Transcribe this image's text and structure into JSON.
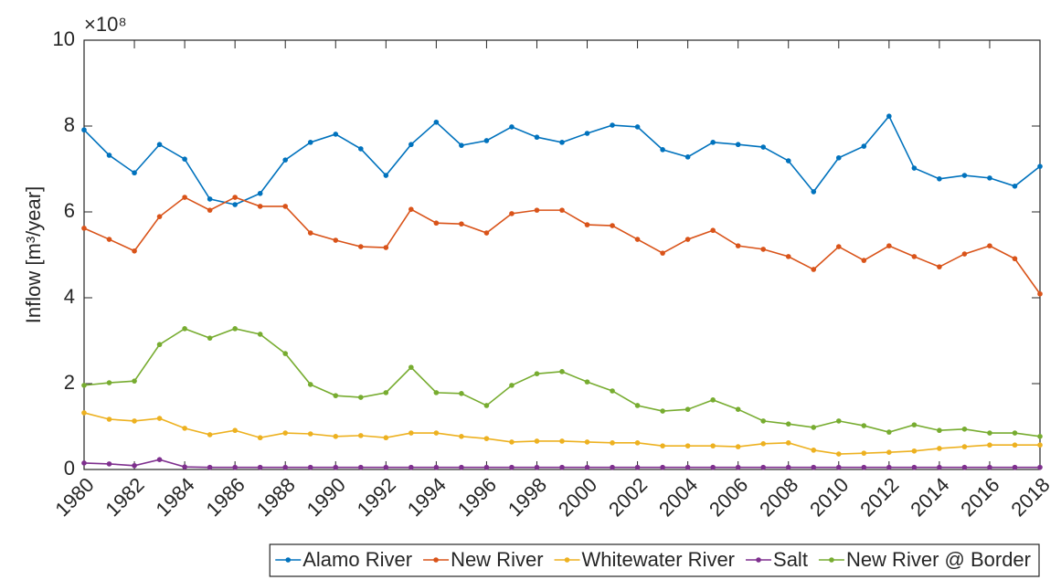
{
  "chart_data": {
    "type": "line",
    "ylabel": "Inflow [m³/year]",
    "exponent_label": "×10⁸",
    "x": [
      1980,
      1981,
      1982,
      1983,
      1984,
      1985,
      1986,
      1987,
      1988,
      1989,
      1990,
      1991,
      1992,
      1993,
      1994,
      1995,
      1996,
      1997,
      1998,
      1999,
      2000,
      2001,
      2002,
      2003,
      2004,
      2005,
      2006,
      2007,
      2008,
      2009,
      2010,
      2011,
      2012,
      2013,
      2014,
      2015,
      2016,
      2017,
      2018
    ],
    "xlim": [
      1980,
      2018
    ],
    "xticks": [
      1980,
      1982,
      1984,
      1986,
      1988,
      1990,
      1992,
      1994,
      1996,
      1998,
      2000,
      2002,
      2004,
      2006,
      2008,
      2010,
      2012,
      2014,
      2016,
      2018
    ],
    "ylim": [
      0,
      10
    ],
    "yticks": [
      0,
      2,
      4,
      6,
      8,
      10
    ],
    "grid": false,
    "legend": "bottom",
    "series": [
      {
        "name": "Alamo River",
        "color": "#0072BD",
        "values": [
          7.91,
          7.32,
          6.91,
          7.57,
          7.23,
          6.3,
          6.17,
          6.43,
          7.21,
          7.62,
          7.81,
          7.47,
          6.85,
          7.57,
          8.09,
          7.55,
          7.66,
          7.98,
          7.74,
          7.62,
          7.83,
          8.02,
          7.98,
          7.45,
          7.28,
          7.62,
          7.57,
          7.51,
          7.19,
          6.47,
          7.26,
          7.53,
          8.23,
          7.02,
          6.77,
          6.85,
          6.79,
          6.6,
          7.06
        ]
      },
      {
        "name": "New River",
        "color": "#D95319",
        "values": [
          5.62,
          5.36,
          5.09,
          5.89,
          6.34,
          6.04,
          6.34,
          6.13,
          6.13,
          5.51,
          5.34,
          5.19,
          5.17,
          6.06,
          5.74,
          5.72,
          5.51,
          5.96,
          6.04,
          6.04,
          5.7,
          5.68,
          5.36,
          5.04,
          5.36,
          5.57,
          5.21,
          5.13,
          4.96,
          4.66,
          5.19,
          4.87,
          5.21,
          4.96,
          4.72,
          5.02,
          5.21,
          4.91,
          4.09
        ]
      },
      {
        "name": "Whitewater River",
        "color": "#EDB120",
        "values": [
          1.32,
          1.17,
          1.13,
          1.19,
          0.96,
          0.81,
          0.91,
          0.74,
          0.85,
          0.83,
          0.77,
          0.79,
          0.74,
          0.85,
          0.85,
          0.77,
          0.72,
          0.64,
          0.66,
          0.66,
          0.64,
          0.62,
          0.62,
          0.55,
          0.55,
          0.55,
          0.53,
          0.6,
          0.62,
          0.45,
          0.36,
          0.38,
          0.4,
          0.43,
          0.49,
          0.53,
          0.57,
          0.57,
          0.57
        ]
      },
      {
        "name": "Salt",
        "color": "#7E2F8E",
        "values": [
          0.15,
          0.13,
          0.09,
          0.23,
          0.06,
          0.05,
          0.05,
          0.05,
          0.05,
          0.05,
          0.05,
          0.05,
          0.05,
          0.05,
          0.05,
          0.05,
          0.05,
          0.05,
          0.05,
          0.05,
          0.05,
          0.05,
          0.05,
          0.05,
          0.05,
          0.05,
          0.05,
          0.05,
          0.05,
          0.05,
          0.05,
          0.05,
          0.05,
          0.05,
          0.05,
          0.05,
          0.05,
          0.05,
          0.05
        ]
      },
      {
        "name": "New River @ Border",
        "color": "#77AC30",
        "values": [
          1.96,
          2.02,
          2.06,
          2.91,
          3.28,
          3.06,
          3.28,
          3.15,
          2.7,
          1.98,
          1.72,
          1.68,
          1.79,
          2.38,
          1.79,
          1.77,
          1.49,
          1.96,
          2.23,
          2.28,
          2.04,
          1.83,
          1.49,
          1.36,
          1.4,
          1.62,
          1.4,
          1.13,
          1.06,
          0.98,
          1.13,
          1.02,
          0.87,
          1.04,
          0.91,
          0.94,
          0.85,
          0.85,
          0.77
        ]
      }
    ]
  }
}
